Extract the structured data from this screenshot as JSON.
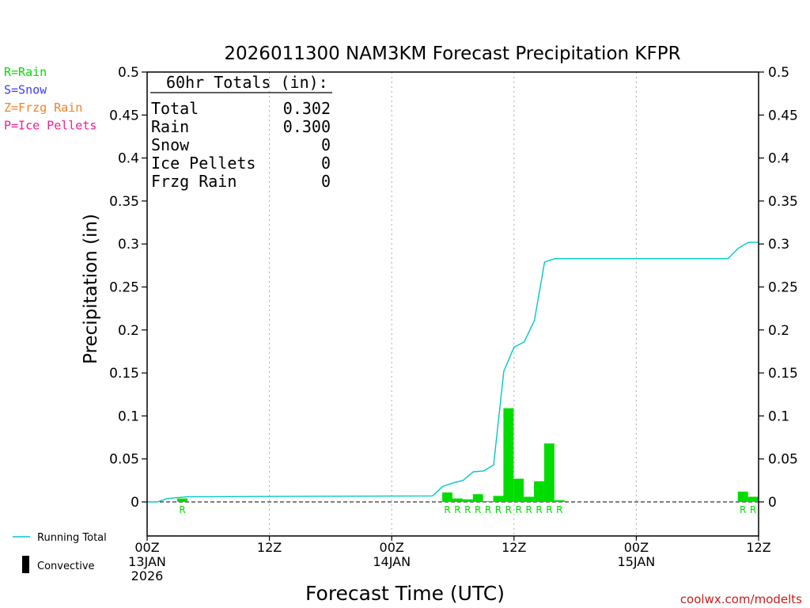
{
  "chart_data": {
    "type": "bar",
    "title": "2026011300 NAM3KM Forecast Precipitation KFPR",
    "ylabel": "Precipitation (in)",
    "xlabel": "Forecast Time (UTC)",
    "ylim": [
      -0.04,
      0.5
    ],
    "xlim_hours": [
      0,
      60
    ],
    "y_ticks": [
      0,
      0.05,
      0.1,
      0.15,
      0.2,
      0.25,
      0.3,
      0.35,
      0.4,
      0.45,
      0.5
    ],
    "y_tick_labels": [
      "0",
      "0.05",
      "0.1",
      "0.15",
      "0.2",
      "0.25",
      "0.3",
      "0.35",
      "0.4",
      "0.45",
      "0.5"
    ],
    "x_ticks": [
      {
        "hour": 0,
        "lines": [
          "00Z",
          "13JAN",
          "2026"
        ]
      },
      {
        "hour": 12,
        "lines": [
          "12Z"
        ]
      },
      {
        "hour": 24,
        "lines": [
          "00Z",
          "14JAN"
        ]
      },
      {
        "hour": 36,
        "lines": [
          "12Z"
        ]
      },
      {
        "hour": 48,
        "lines": [
          "00Z",
          "15JAN"
        ]
      },
      {
        "hour": 60,
        "lines": [
          "12Z"
        ]
      }
    ],
    "grid_hours": [
      12,
      24,
      36,
      48
    ],
    "series": [
      {
        "name": "Hourly Precipitation (Rain)",
        "type": "bar",
        "color": "#00dc00",
        "data": [
          {
            "hour": 3,
            "value": 0.004,
            "ptype": "R"
          },
          {
            "hour": 29,
            "value": 0.011,
            "ptype": "R"
          },
          {
            "hour": 30,
            "value": 0.004,
            "ptype": "R"
          },
          {
            "hour": 31,
            "value": 0.003,
            "ptype": "R"
          },
          {
            "hour": 32,
            "value": 0.009,
            "ptype": "R"
          },
          {
            "hour": 33,
            "value": 0.001,
            "ptype": "R"
          },
          {
            "hour": 34,
            "value": 0.007,
            "ptype": "R"
          },
          {
            "hour": 35,
            "value": 0.109,
            "ptype": "R"
          },
          {
            "hour": 36,
            "value": 0.027,
            "ptype": "R"
          },
          {
            "hour": 37,
            "value": 0.006,
            "ptype": "R"
          },
          {
            "hour": 38,
            "value": 0.024,
            "ptype": "R"
          },
          {
            "hour": 39,
            "value": 0.068,
            "ptype": "R"
          },
          {
            "hour": 40,
            "value": 0.002,
            "ptype": "R"
          },
          {
            "hour": 58,
            "value": 0.012,
            "ptype": "R"
          },
          {
            "hour": 59,
            "value": 0.006,
            "ptype": "R"
          }
        ]
      },
      {
        "name": "Running Total",
        "type": "line",
        "color": "#00c8c8",
        "x": [
          0,
          1,
          2,
          3,
          4,
          28,
          29,
          30,
          31,
          32,
          33,
          34,
          35,
          36,
          37,
          38,
          39,
          40,
          56,
          57,
          58,
          59,
          60
        ],
        "y": [
          0,
          0,
          0.004,
          0.005,
          0.006,
          0.007,
          0.018,
          0.022,
          0.025,
          0.035,
          0.036,
          0.043,
          0.152,
          0.18,
          0.186,
          0.211,
          0.279,
          0.283,
          0.283,
          0.283,
          0.295,
          0.302,
          0.302
        ]
      }
    ],
    "totals": {
      "header": "60hr Totals (in):",
      "rows": [
        {
          "label": "Total",
          "value": "0.302"
        },
        {
          "label": "Rain",
          "value": "0.300"
        },
        {
          "label": "Snow",
          "value": "0"
        },
        {
          "label": "Ice Pellets",
          "value": "0"
        },
        {
          "label": "Frzg Rain",
          "value": "0"
        }
      ]
    },
    "ptype_legend": [
      {
        "text": "R=Rain",
        "color": "#00dc00"
      },
      {
        "text": "S=Snow",
        "color": "#3c3cff"
      },
      {
        "text": "Z=Frzg Rain",
        "color": "#f08228"
      },
      {
        "text": "P=Ice Pellets",
        "color": "#f01e96"
      }
    ],
    "bottom_legend": [
      {
        "text": "Running Total",
        "kind": "line",
        "color": "#00c8c8"
      },
      {
        "text": "Convective",
        "kind": "bar",
        "color": "#000000"
      }
    ],
    "credit": "coolwx.com/modelts",
    "credit_color": "#c81e1e"
  }
}
